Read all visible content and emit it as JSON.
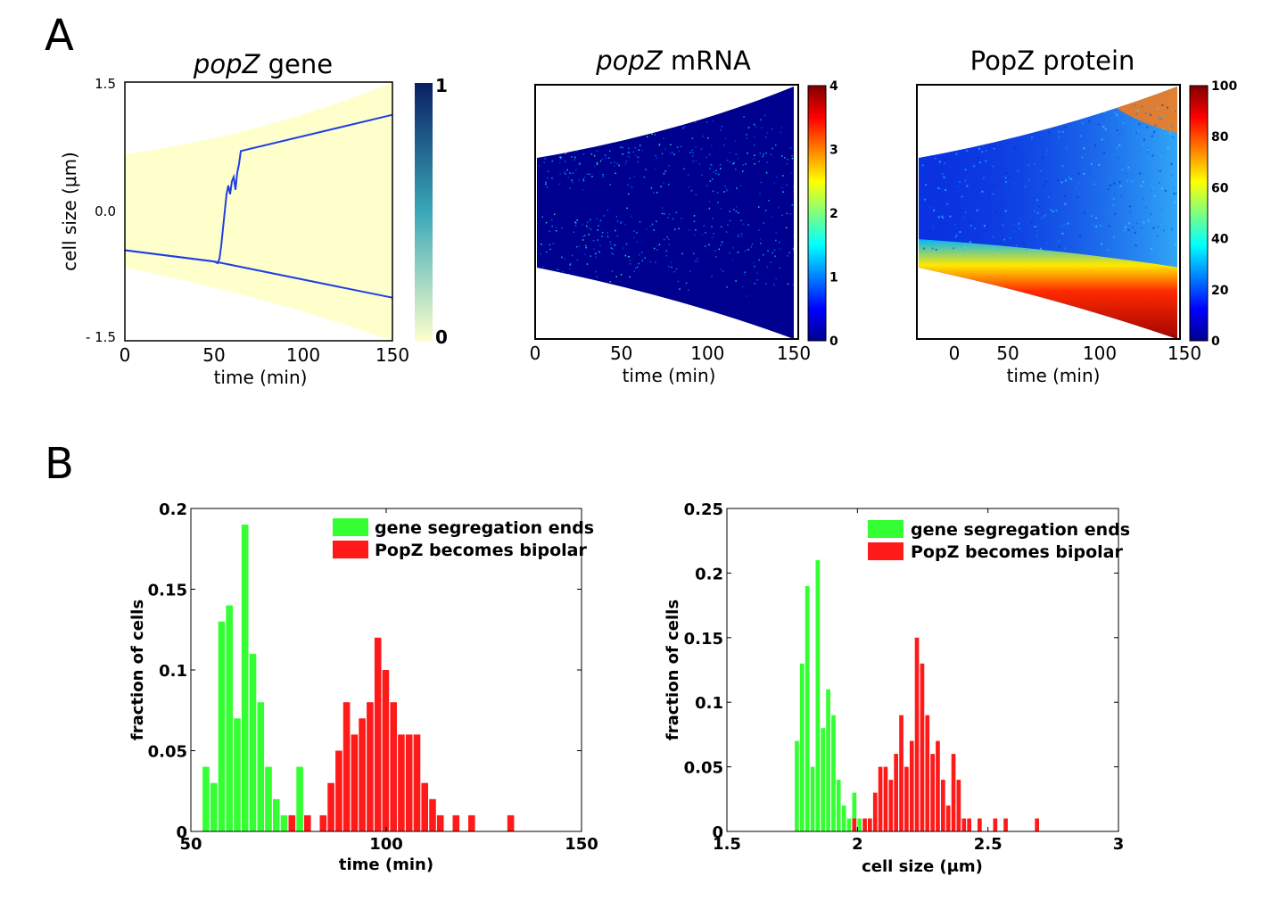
{
  "panel_labels": [
    "A",
    "B"
  ],
  "colors": {
    "gene_bg": "#ffffcc",
    "gene_line": "#1f3fe6",
    "green": "#33ff33",
    "red": "#ff1a1a"
  },
  "chart_data": [
    {
      "type": "line",
      "title_italic": "popZ",
      "title_rest": " gene",
      "xlabel": "time (min)",
      "ylabel": "cell size (μm)",
      "xlim": [
        0,
        150
      ],
      "ylim": [
        -1.5,
        1.5
      ],
      "x_ticks": [
        "0",
        "50",
        "100",
        "150"
      ],
      "y_ticks": [
        "1.5",
        "0.0",
        "- 1.5"
      ],
      "colorbar": {
        "min_label": "0",
        "max_label": "1"
      },
      "series": [
        {
          "x": [
            0,
            50,
            52,
            53,
            54,
            55,
            56,
            57,
            58,
            59,
            60,
            61,
            62,
            63,
            64,
            65,
            150
          ],
          "y": [
            -0.45,
            -0.58,
            -0.6,
            -0.55,
            -0.4,
            -0.2,
            0.0,
            0.2,
            0.3,
            0.2,
            0.35,
            0.4,
            0.25,
            0.45,
            0.55,
            0.7,
            1.12
          ]
        },
        {
          "x": [
            0,
            50,
            150
          ],
          "y": [
            -0.45,
            -0.58,
            -1.0
          ]
        }
      ]
    },
    {
      "type": "heatmap",
      "title_italic": "popZ",
      "title_rest": " mRNA",
      "xlabel": "time (min)",
      "x_ticks": [
        "0",
        "50",
        "100",
        "150"
      ],
      "colorbar": {
        "ticks": [
          "0",
          "1",
          "2",
          "3",
          "4"
        ]
      }
    },
    {
      "type": "heatmap",
      "title": "PopZ protein",
      "xlabel": "time (min)",
      "x_ticks": [
        "0",
        "50",
        "100",
        "150"
      ],
      "colorbar": {
        "ticks": [
          "0",
          "20",
          "40",
          "60",
          "80",
          "100"
        ]
      }
    },
    {
      "type": "bar",
      "xlabel": "time (min)",
      "ylabel": "fraction of cells",
      "xlim": [
        50,
        150
      ],
      "ylim": [
        0,
        0.2
      ],
      "x_ticks": [
        "50",
        "100",
        "150"
      ],
      "y_ticks": [
        "0",
        "0.05",
        "0.1",
        "0.15",
        "0.2"
      ],
      "legend": "top-right",
      "series": [
        {
          "name": "gene segregation ends",
          "x": [
            54,
            56,
            58,
            60,
            62,
            64,
            66,
            68,
            70,
            72,
            74,
            76,
            78
          ],
          "values": [
            0.04,
            0.03,
            0.13,
            0.14,
            0.07,
            0.19,
            0.11,
            0.08,
            0.04,
            0.02,
            0.01,
            0.01,
            0.04
          ]
        },
        {
          "name": "PopZ becomes bipolar",
          "x": [
            76,
            80,
            84,
            86,
            88,
            90,
            92,
            94,
            96,
            98,
            100,
            102,
            104,
            106,
            108,
            110,
            112,
            114,
            118,
            122,
            132
          ],
          "values": [
            0.01,
            0.01,
            0.01,
            0.03,
            0.05,
            0.08,
            0.06,
            0.07,
            0.08,
            0.12,
            0.1,
            0.08,
            0.06,
            0.06,
            0.06,
            0.03,
            0.02,
            0.01,
            0.01,
            0.01,
            0.01
          ]
        }
      ]
    },
    {
      "type": "bar",
      "xlabel": "cell size (μm)",
      "ylabel": "fraction of cells",
      "xlim": [
        1.5,
        3
      ],
      "ylim": [
        0,
        0.25
      ],
      "x_ticks": [
        "1.5",
        "2",
        "2.5",
        "3"
      ],
      "y_ticks": [
        "0",
        "0.05",
        "0.1",
        "0.15",
        "0.2",
        "0.25"
      ],
      "legend": "top-right",
      "series": [
        {
          "name": "gene segregation ends",
          "x": [
            1.77,
            1.79,
            1.81,
            1.83,
            1.85,
            1.87,
            1.89,
            1.91,
            1.93,
            1.95,
            1.97,
            1.99,
            2.01
          ],
          "values": [
            0.07,
            0.13,
            0.19,
            0.05,
            0.21,
            0.08,
            0.11,
            0.09,
            0.04,
            0.02,
            0.01,
            0.03,
            0.01
          ]
        },
        {
          "name": "PopZ becomes bipolar",
          "x": [
            1.99,
            2.03,
            2.05,
            2.07,
            2.09,
            2.11,
            2.13,
            2.15,
            2.17,
            2.19,
            2.21,
            2.23,
            2.25,
            2.27,
            2.29,
            2.31,
            2.33,
            2.35,
            2.37,
            2.39,
            2.41,
            2.43,
            2.47,
            2.53,
            2.57,
            2.69
          ],
          "values": [
            0.01,
            0.01,
            0.01,
            0.03,
            0.05,
            0.05,
            0.04,
            0.06,
            0.09,
            0.05,
            0.07,
            0.15,
            0.13,
            0.09,
            0.06,
            0.07,
            0.04,
            0.02,
            0.06,
            0.04,
            0.01,
            0.01,
            0.01,
            0.01,
            0.01,
            0.01
          ]
        }
      ]
    }
  ]
}
